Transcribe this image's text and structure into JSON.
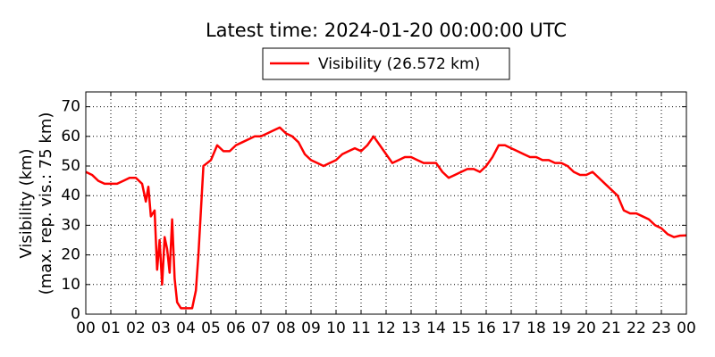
{
  "chart_data": {
    "type": "line",
    "title": "Latest time: 2024-01-20 00:00:00 UTC",
    "ylabel": [
      "Visibility (km)",
      "(max. rep. vis.: 75 km)"
    ],
    "x": [
      0,
      0.25,
      0.5,
      0.75,
      1,
      1.25,
      1.5,
      1.75,
      2,
      2.25,
      2.4,
      2.5,
      2.6,
      2.75,
      2.85,
      2.95,
      3.05,
      3.15,
      3.25,
      3.35,
      3.45,
      3.55,
      3.65,
      3.8,
      4,
      4.25,
      4.4,
      4.5,
      4.6,
      4.7,
      4.85,
      5,
      5.25,
      5.5,
      5.75,
      6,
      6.25,
      6.5,
      6.75,
      7,
      7.25,
      7.5,
      7.75,
      8,
      8.25,
      8.5,
      8.75,
      9,
      9.25,
      9.5,
      9.75,
      10,
      10.25,
      10.5,
      10.75,
      11,
      11.25,
      11.5,
      11.75,
      12,
      12.25,
      12.5,
      12.75,
      13,
      13.25,
      13.5,
      13.75,
      14,
      14.25,
      14.5,
      14.75,
      15,
      15.25,
      15.5,
      15.75,
      16,
      16.25,
      16.5,
      16.75,
      17,
      17.25,
      17.5,
      17.75,
      18,
      18.25,
      18.5,
      18.75,
      19,
      19.25,
      19.5,
      19.75,
      20,
      20.25,
      20.5,
      20.75,
      21,
      21.25,
      21.5,
      21.75,
      22,
      22.25,
      22.5,
      22.75,
      23,
      23.25,
      23.5,
      23.75,
      24
    ],
    "series": [
      {
        "name": "Visibility (26.572 km)",
        "color": "#ff0000",
        "values": [
          48,
          47,
          45,
          44,
          44,
          44,
          45,
          46,
          46,
          44,
          38,
          43,
          33,
          35,
          15,
          25,
          10,
          26,
          22,
          14,
          32,
          12,
          4,
          2,
          2,
          2,
          8,
          20,
          35,
          50,
          51,
          52,
          57,
          55,
          55,
          57,
          58,
          59,
          60,
          60,
          61,
          62,
          63,
          61,
          60,
          58,
          54,
          52,
          51,
          50,
          51,
          52,
          54,
          55,
          56,
          55,
          57,
          60,
          57,
          54,
          51,
          52,
          53,
          53,
          52,
          51,
          51,
          51,
          48,
          46,
          47,
          48,
          49,
          49,
          48,
          50,
          53,
          57,
          57,
          56,
          55,
          54,
          53,
          53,
          52,
          52,
          51,
          51,
          50,
          48,
          47,
          47,
          48,
          46,
          44,
          42,
          40,
          35,
          34,
          34,
          33,
          32,
          30,
          29,
          27,
          26,
          26.5,
          26.572
        ]
      }
    ],
    "xlim": [
      0,
      24
    ],
    "xticks": [
      {
        "value": 0,
        "label": "00"
      },
      {
        "value": 1,
        "label": "01"
      },
      {
        "value": 2,
        "label": "02"
      },
      {
        "value": 3,
        "label": "03"
      },
      {
        "value": 4,
        "label": "04"
      },
      {
        "value": 5,
        "label": "05"
      },
      {
        "value": 6,
        "label": "06"
      },
      {
        "value": 7,
        "label": "07"
      },
      {
        "value": 8,
        "label": "08"
      },
      {
        "value": 9,
        "label": "09"
      },
      {
        "value": 10,
        "label": "10"
      },
      {
        "value": 11,
        "label": "11"
      },
      {
        "value": 12,
        "label": "12"
      },
      {
        "value": 13,
        "label": "13"
      },
      {
        "value": 14,
        "label": "14"
      },
      {
        "value": 15,
        "label": "15"
      },
      {
        "value": 16,
        "label": "16"
      },
      {
        "value": 17,
        "label": "17"
      },
      {
        "value": 18,
        "label": "18"
      },
      {
        "value": 19,
        "label": "19"
      },
      {
        "value": 20,
        "label": "20"
      },
      {
        "value": 21,
        "label": "21"
      },
      {
        "value": 22,
        "label": "22"
      },
      {
        "value": 23,
        "label": "23"
      },
      {
        "value": 24,
        "label": "00"
      }
    ],
    "ylim": [
      0,
      75
    ],
    "yticks": [
      0,
      10,
      20,
      30,
      40,
      50,
      60,
      70
    ],
    "grid": true,
    "legend": "top"
  }
}
